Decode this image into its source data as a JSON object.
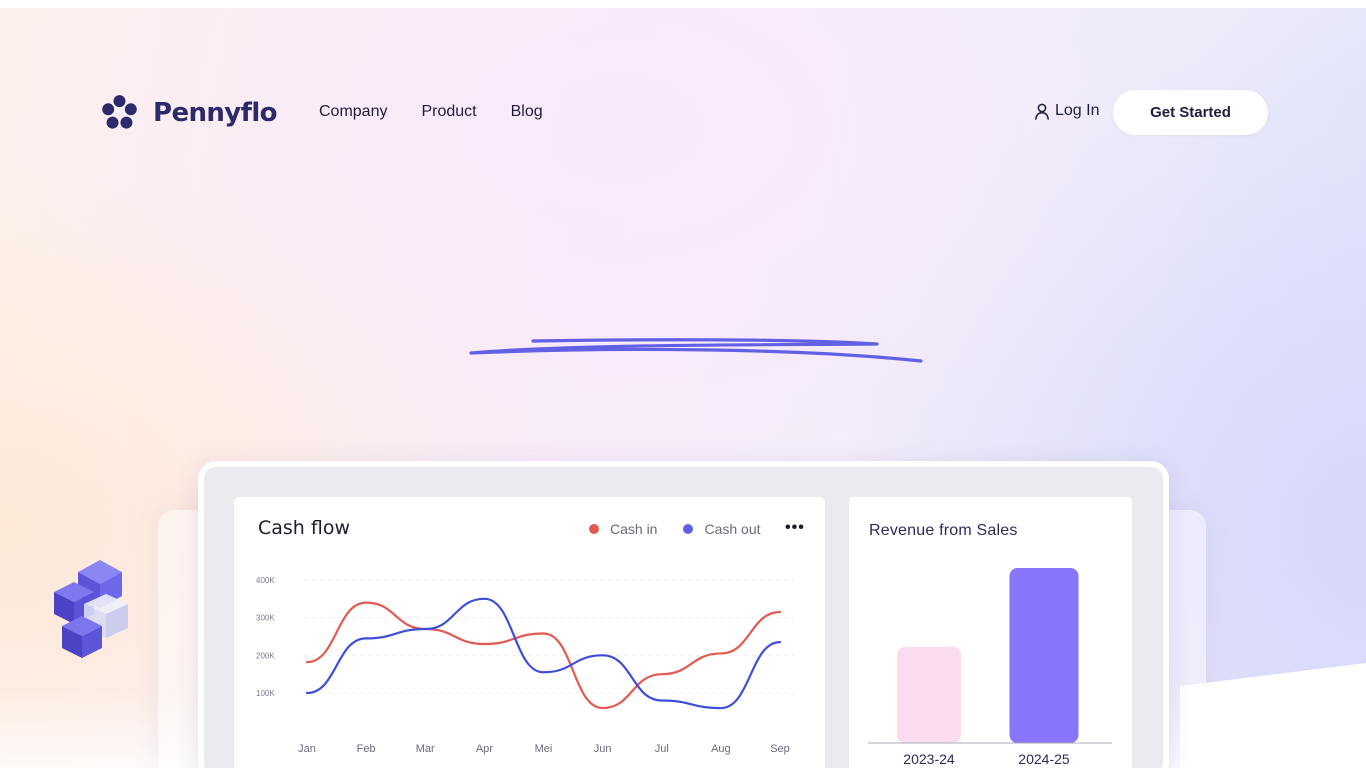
{
  "brand": {
    "name": "Pennyflo",
    "icon": "flower-logo-icon",
    "color": "#2d2a6b"
  },
  "nav": {
    "items": [
      {
        "label": "Company"
      },
      {
        "label": "Product"
      },
      {
        "label": "Blog"
      }
    ],
    "login_label": "Log In",
    "login_icon": "user-icon",
    "cta_label": "Get Started"
  },
  "colors": {
    "accent": "#6261e6",
    "cash_in": "#e25a52",
    "cash_out": "#3e4ed8",
    "bar_prev": "#fcdcf0",
    "bar_curr": "#8775fb"
  },
  "dashboard": {
    "cashflow": {
      "title": "Cash flow",
      "menu_icon": "more-dots-icon",
      "legend": [
        {
          "label": "Cash in",
          "color": "#e25a52"
        },
        {
          "label": "Cash out",
          "color": "#3e4ed8"
        }
      ]
    },
    "revenue": {
      "title": "Revenue from Sales"
    }
  },
  "chart_data": [
    {
      "type": "line",
      "title": "Cash flow",
      "categories": [
        "Jan",
        "Feb",
        "Mar",
        "Apr",
        "Mei",
        "Jun",
        "Jul",
        "Aug",
        "Sep"
      ],
      "y_ticks": [
        "100K",
        "200K",
        "300K",
        "400K"
      ],
      "ylim": [
        0,
        400000
      ],
      "grid": true,
      "legend": "top-right",
      "series": [
        {
          "name": "Cash in",
          "values": [
            182000,
            340000,
            270000,
            230000,
            258000,
            60000,
            150000,
            205000,
            315000
          ]
        },
        {
          "name": "Cash out",
          "values": [
            100000,
            245000,
            270000,
            350000,
            155000,
            200000,
            80000,
            60000,
            235000
          ]
        }
      ]
    },
    {
      "type": "bar",
      "title": "Revenue from Sales",
      "categories": [
        "2023-24",
        "2024-25"
      ],
      "values": [
        55,
        100
      ],
      "ylim": [
        0,
        100
      ]
    }
  ]
}
